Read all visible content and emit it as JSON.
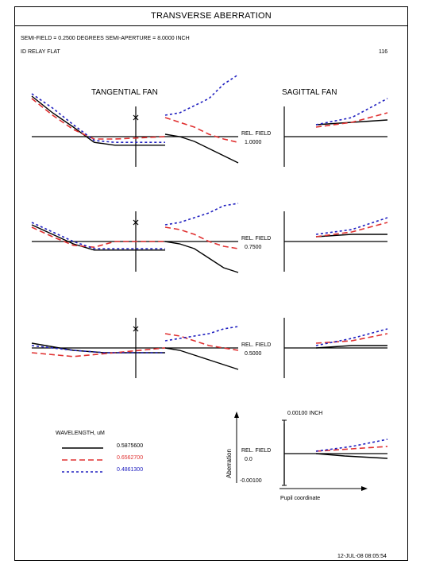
{
  "header": {
    "title": "TRANSVERSE ABERRATION",
    "semi_field": "SEMI-FIELD =  0.2500 DEGREES  SEMI-APERTURE =  8.0000 INCH",
    "lens_name": "ID RELAY FLAT",
    "page_number": "116"
  },
  "fan_titles": {
    "tangential": "TANGENTIAL FAN",
    "sagittal": "SAGITTAL FAN"
  },
  "legend": {
    "title": "WAVELENGTH, uM",
    "entries": [
      {
        "label": "0.5875600",
        "color": "#000000",
        "dash": "solid"
      },
      {
        "label": "0.6562700",
        "color": "#e03030",
        "dash": "dashed"
      },
      {
        "label": "0.4861300",
        "color": "#2020c0",
        "dash": "dotted"
      }
    ]
  },
  "scale": {
    "top_label": "0.00100 INCH",
    "bottom_label": "-0.00100",
    "y_axis_label": "Aberration",
    "x_axis_label": "Pupil coordinate"
  },
  "footer": {
    "date": "12-JUL-08  08:05:54"
  },
  "chart_data": {
    "type": "line",
    "xlabel": "Pupil coordinate",
    "ylabel": "Aberration",
    "ylim": [
      -0.001,
      0.001
    ],
    "xlim": [
      -1,
      1
    ],
    "rel_field_label": "REL. FIELD",
    "panels": [
      {
        "rel_field": "1.0000",
        "tangential": {
          "chief_marker": "x",
          "series": [
            {
              "name": "0.5875600",
              "neg": [
                [
                  -1.0,
                  0.00085
                ],
                [
                  -0.8,
                  0.0005
                ],
                [
                  -0.6,
                  0.0002
                ],
                [
                  -0.4,
                  -0.00012
                ],
                [
                  -0.2,
                  -0.00018
                ],
                [
                  0,
                  -0.00018
                ]
              ],
              "pos": [
                [
                  0,
                  5e-05
                ],
                [
                  0.2,
                  0.0
                ],
                [
                  0.4,
                  -0.0001
                ],
                [
                  0.6,
                  -0.00025
                ],
                [
                  0.8,
                  -0.0004
                ],
                [
                  1.0,
                  -0.00055
                ]
              ]
            },
            {
              "name": "0.6562700",
              "neg": [
                [
                  -1.0,
                  0.0008
                ],
                [
                  -0.8,
                  0.00045
                ],
                [
                  -0.6,
                  0.00015
                ],
                [
                  -0.4,
                  -5e-05
                ],
                [
                  -0.2,
                  -5e-05
                ],
                [
                  0,
                  0.0
                ]
              ],
              "pos": [
                [
                  0,
                  0.0004
                ],
                [
                  0.2,
                  0.0003
                ],
                [
                  0.4,
                  0.0002
                ],
                [
                  0.6,
                  5e-05
                ],
                [
                  0.8,
                  -5e-05
                ],
                [
                  1.0,
                  -0.00012
                ]
              ]
            },
            {
              "name": "0.4861300",
              "neg": [
                [
                  -1.0,
                  0.0009
                ],
                [
                  -0.8,
                  0.0006
                ],
                [
                  -0.6,
                  0.00025
                ],
                [
                  -0.4,
                  -8e-05
                ],
                [
                  -0.2,
                  -0.00012
                ],
                [
                  0,
                  -0.00012
                ]
              ],
              "pos": [
                [
                  0,
                  0.00045
                ],
                [
                  0.2,
                  0.0005
                ],
                [
                  0.4,
                  0.00065
                ],
                [
                  0.6,
                  0.0008
                ],
                [
                  0.8,
                  0.0011
                ],
                [
                  1.0,
                  0.0013
                ]
              ]
            }
          ]
        },
        "sagittal": {
          "series": [
            {
              "name": "0.5875600",
              "pos": [
                [
                  0,
                  0.00025
                ],
                [
                  0.5,
                  0.0003
                ],
                [
                  1.0,
                  0.00035
                ]
              ]
            },
            {
              "name": "0.6562700",
              "pos": [
                [
                  0,
                  0.0002
                ],
                [
                  0.5,
                  0.0003
                ],
                [
                  1.0,
                  0.0005
                ]
              ]
            },
            {
              "name": "0.4861300",
              "pos": [
                [
                  0,
                  0.00025
                ],
                [
                  0.5,
                  0.0004
                ],
                [
                  1.0,
                  0.0008
                ]
              ]
            }
          ]
        }
      },
      {
        "rel_field": "0.7500",
        "tangential": {
          "chief_marker": "x",
          "series": [
            {
              "name": "0.5875600",
              "neg": [
                [
                  -1.0,
                  0.00035
                ],
                [
                  -0.8,
                  0.00015
                ],
                [
                  -0.6,
                  -5e-05
                ],
                [
                  -0.4,
                  -0.00018
                ],
                [
                  -0.2,
                  -0.00018
                ],
                [
                  0,
                  -0.00018
                ]
              ],
              "pos": [
                [
                  0,
                  0.0
                ],
                [
                  0.2,
                  -5e-05
                ],
                [
                  0.4,
                  -0.00015
                ],
                [
                  0.6,
                  -0.00035
                ],
                [
                  0.8,
                  -0.00055
                ],
                [
                  1.0,
                  -0.00065
                ]
              ]
            },
            {
              "name": "0.6562700",
              "neg": [
                [
                  -1.0,
                  0.0003
                ],
                [
                  -0.8,
                  0.0001
                ],
                [
                  -0.6,
                  -8e-05
                ],
                [
                  -0.4,
                  -0.00012
                ],
                [
                  -0.2,
                  0.0
                ],
                [
                  0,
                  0.0
                ]
              ],
              "pos": [
                [
                  0,
                  0.0003
                ],
                [
                  0.2,
                  0.00025
                ],
                [
                  0.4,
                  0.00015
                ],
                [
                  0.6,
                  0.0
                ],
                [
                  0.8,
                  -0.0001
                ],
                [
                  1.0,
                  -0.00015
                ]
              ]
            },
            {
              "name": "0.4861300",
              "neg": [
                [
                  -1.0,
                  0.0004
                ],
                [
                  -0.8,
                  0.0002
                ],
                [
                  -0.6,
                  0.0
                ],
                [
                  -0.4,
                  -0.00015
                ],
                [
                  -0.2,
                  -0.00015
                ],
                [
                  0,
                  -0.00015
                ]
              ],
              "pos": [
                [
                  0,
                  0.00035
                ],
                [
                  0.2,
                  0.0004
                ],
                [
                  0.4,
                  0.0005
                ],
                [
                  0.6,
                  0.0006
                ],
                [
                  0.8,
                  0.00075
                ],
                [
                  1.0,
                  0.0008
                ]
              ]
            }
          ]
        },
        "sagittal": {
          "series": [
            {
              "name": "0.5875600",
              "pos": [
                [
                  0,
                  0.0001
                ],
                [
                  0.5,
                  0.00015
                ],
                [
                  1.0,
                  0.00015
                ]
              ]
            },
            {
              "name": "0.6562700",
              "pos": [
                [
                  0,
                  0.0001
                ],
                [
                  0.5,
                  0.0002
                ],
                [
                  1.0,
                  0.0004
                ]
              ]
            },
            {
              "name": "0.4861300",
              "pos": [
                [
                  0,
                  0.00015
                ],
                [
                  0.5,
                  0.00025
                ],
                [
                  1.0,
                  0.0005
                ]
              ]
            }
          ]
        }
      },
      {
        "rel_field": "0.5000",
        "tangential": {
          "chief_marker": "x",
          "series": [
            {
              "name": "0.5875600",
              "neg": [
                [
                  -1.0,
                  0.0001
                ],
                [
                  -0.6,
                  -5e-05
                ],
                [
                  -0.3,
                  -0.0001
                ],
                [
                  0,
                  -0.0001
                ]
              ],
              "pos": [
                [
                  0,
                  0.0
                ],
                [
                  0.2,
                  -5e-05
                ],
                [
                  0.4,
                  -0.00015
                ],
                [
                  0.6,
                  -0.00025
                ],
                [
                  0.8,
                  -0.00035
                ],
                [
                  1.0,
                  -0.00045
                ]
              ]
            },
            {
              "name": "0.6562700",
              "neg": [
                [
                  -1.0,
                  -0.0001
                ],
                [
                  -0.6,
                  -0.00018
                ],
                [
                  -0.3,
                  -0.00012
                ],
                [
                  0,
                  0.0
                ]
              ],
              "pos": [
                [
                  0,
                  0.0003
                ],
                [
                  0.2,
                  0.00025
                ],
                [
                  0.4,
                  0.00015
                ],
                [
                  0.6,
                  5e-05
                ],
                [
                  0.8,
                  0.0
                ],
                [
                  1.0,
                  -5e-05
                ]
              ]
            },
            {
              "name": "0.4861300",
              "neg": [
                [
                  -1.0,
                  5e-05
                ],
                [
                  -0.6,
                  -5e-05
                ],
                [
                  -0.3,
                  -0.0001
                ],
                [
                  0,
                  -0.0001
                ]
              ],
              "pos": [
                [
                  0,
                  0.00015
                ],
                [
                  0.2,
                  0.0002
                ],
                [
                  0.4,
                  0.00025
                ],
                [
                  0.6,
                  0.0003
                ],
                [
                  0.8,
                  0.0004
                ],
                [
                  1.0,
                  0.00045
                ]
              ]
            }
          ]
        },
        "sagittal": {
          "series": [
            {
              "name": "0.5875600",
              "pos": [
                [
                  0,
                  0.0
                ],
                [
                  0.5,
                  5e-05
                ],
                [
                  1.0,
                  5e-05
                ]
              ]
            },
            {
              "name": "0.6562700",
              "pos": [
                [
                  0,
                  0.0001
                ],
                [
                  0.5,
                  0.00015
                ],
                [
                  1.0,
                  0.0003
                ]
              ]
            },
            {
              "name": "0.4861300",
              "pos": [
                [
                  0,
                  5e-05
                ],
                [
                  0.5,
                  0.0002
                ],
                [
                  1.0,
                  0.0004
                ]
              ]
            }
          ]
        }
      },
      {
        "rel_field": "0.0",
        "tangential": null,
        "sagittal": {
          "series": [
            {
              "name": "0.5875600",
              "pos": [
                [
                  0,
                  0.0
                ],
                [
                  0.4,
                  -5e-05
                ],
                [
                  1.0,
                  -0.0001
                ]
              ]
            },
            {
              "name": "0.6562700",
              "pos": [
                [
                  0,
                  5e-05
                ],
                [
                  0.5,
                  0.0001
                ],
                [
                  1.0,
                  0.00015
                ]
              ]
            },
            {
              "name": "0.4861300",
              "pos": [
                [
                  0,
                  5e-05
                ],
                [
                  0.5,
                  0.00015
                ],
                [
                  1.0,
                  0.0003
                ]
              ]
            }
          ]
        }
      }
    ]
  }
}
